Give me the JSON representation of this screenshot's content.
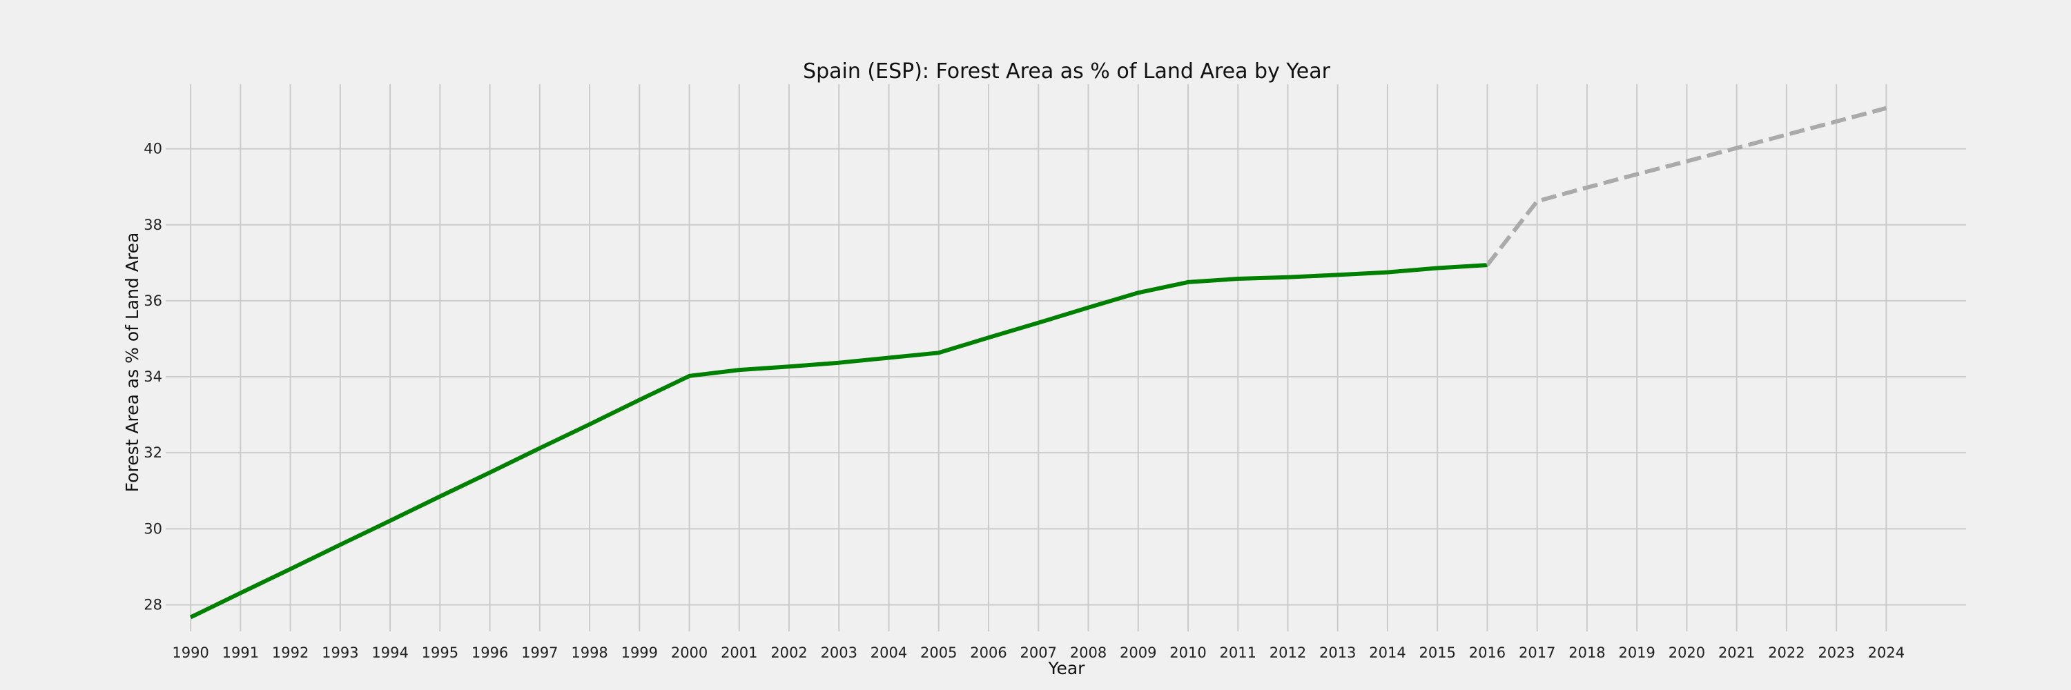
{
  "chart_data": {
    "type": "line",
    "title": "Spain (ESP): Forest Area as % of Land Area by Year",
    "xlabel": "Year",
    "ylabel": "Forest Area as % of Land Area",
    "ylim": [
      27.3,
      41.7
    ],
    "xlim": [
      1989.5,
      2025.6
    ],
    "x_ticks": [
      1990,
      1991,
      1992,
      1993,
      1994,
      1995,
      1996,
      1997,
      1998,
      1999,
      2000,
      2001,
      2002,
      2003,
      2004,
      2005,
      2006,
      2007,
      2008,
      2009,
      2010,
      2011,
      2012,
      2013,
      2014,
      2015,
      2016,
      2017,
      2018,
      2019,
      2020,
      2021,
      2022,
      2023,
      2024
    ],
    "y_ticks": [
      28,
      30,
      32,
      34,
      36,
      38,
      40
    ],
    "grid": true,
    "series": [
      {
        "style": "solid",
        "color": "#008000",
        "x": [
          1990,
          1991,
          1992,
          1993,
          1994,
          1995,
          1996,
          1997,
          1998,
          1999,
          2000,
          2001,
          2002,
          2003,
          2004,
          2005,
          2006,
          2007,
          2008,
          2009,
          2010,
          2011,
          2012,
          2013,
          2014,
          2015,
          2016
        ],
        "y": [
          27.67,
          28.31,
          28.94,
          29.58,
          30.21,
          30.85,
          31.48,
          32.12,
          32.75,
          33.39,
          34.02,
          34.18,
          34.27,
          34.37,
          34.5,
          34.63,
          35.03,
          35.42,
          35.82,
          36.21,
          36.49,
          36.58,
          36.62,
          36.68,
          36.75,
          36.86,
          36.94
        ]
      },
      {
        "style": "dashed",
        "color": "#aaaaaa",
        "x": [
          2016,
          2017,
          2018,
          2019,
          2020,
          2021,
          2022,
          2023,
          2024
        ],
        "y": [
          36.94,
          38.62,
          38.98,
          39.33,
          39.67,
          40.02,
          40.37,
          40.72,
          41.07
        ]
      }
    ]
  }
}
